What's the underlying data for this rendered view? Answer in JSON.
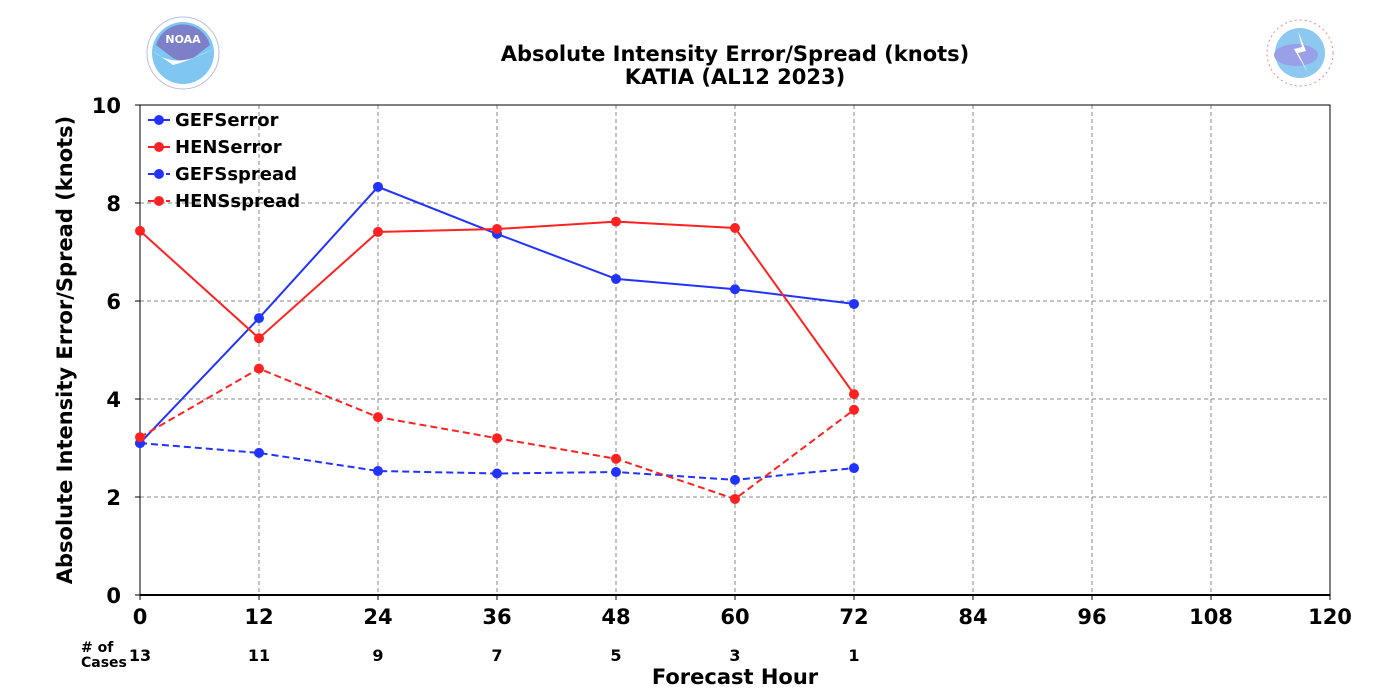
{
  "chart_data": {
    "type": "line",
    "title": "Absolute Intensity Error/Spread (knots)",
    "subtitle": "KATIA (AL12 2023)",
    "xlabel": "Forecast Hour",
    "ylabel": "Absolute Intensity Error/Spread (knots)",
    "xlim": [
      0,
      120
    ],
    "ylim": [
      0,
      10
    ],
    "x_ticks": [
      0,
      12,
      24,
      36,
      48,
      60,
      72,
      84,
      96,
      108,
      120
    ],
    "y_ticks": [
      0,
      2,
      4,
      6,
      8,
      10
    ],
    "grid": true,
    "legend_position": "top-left",
    "cases_header": "# of\nCases",
    "cases_header_lines": [
      "# of",
      "Cases"
    ],
    "cases": [
      {
        "x": 0,
        "n": "13"
      },
      {
        "x": 12,
        "n": "11"
      },
      {
        "x": 24,
        "n": "9"
      },
      {
        "x": 36,
        "n": "7"
      },
      {
        "x": 48,
        "n": "5"
      },
      {
        "x": 60,
        "n": "3"
      },
      {
        "x": 72,
        "n": "1"
      }
    ],
    "series": [
      {
        "name": "GEFSerror",
        "color": "#2233ff",
        "dashed": false,
        "x": [
          0,
          12,
          24,
          36,
          48,
          60,
          72
        ],
        "values": [
          3.1,
          5.65,
          8.33,
          7.37,
          6.45,
          6.24,
          5.94
        ]
      },
      {
        "name": "HENSerror",
        "color": "#ff2222",
        "dashed": false,
        "x": [
          0,
          12,
          24,
          36,
          48,
          60,
          72
        ],
        "values": [
          7.43,
          5.24,
          7.41,
          7.47,
          7.62,
          7.49,
          4.1
        ]
      },
      {
        "name": "GEFSspread",
        "color": "#2233ff",
        "dashed": true,
        "x": [
          0,
          12,
          24,
          36,
          48,
          60,
          72
        ],
        "values": [
          3.1,
          2.9,
          2.53,
          2.48,
          2.51,
          2.35,
          2.59
        ]
      },
      {
        "name": "HENSspread",
        "color": "#ff2222",
        "dashed": true,
        "x": [
          0,
          12,
          24,
          36,
          48,
          60,
          72
        ],
        "values": [
          3.22,
          4.62,
          3.63,
          3.2,
          2.78,
          1.96,
          3.78
        ]
      }
    ]
  },
  "logos": {
    "left": {
      "name": "NOAA",
      "text": "NOAA",
      "colors": [
        "#7d7fc9",
        "#7fc7f2"
      ]
    },
    "right": {
      "name": "National Weather Service",
      "text": "NATIONAL WEATHER SERVICE",
      "colors": [
        "#f08a8a",
        "#9aa0e8",
        "#8cc8f0"
      ]
    }
  }
}
